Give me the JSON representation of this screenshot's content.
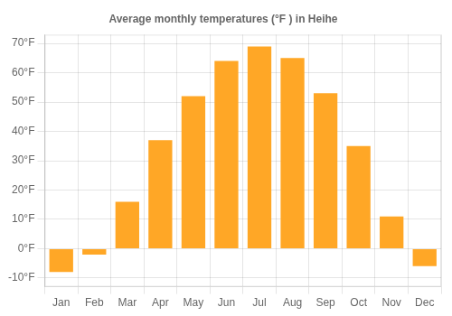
{
  "chart_data": {
    "type": "bar",
    "title": "Average monthly temperatures (°F ) in Heihe",
    "categories": [
      "Jan",
      "Feb",
      "Mar",
      "Apr",
      "May",
      "Jun",
      "Jul",
      "Aug",
      "Sep",
      "Oct",
      "Nov",
      "Dec"
    ],
    "values": [
      -8,
      -2,
      16,
      37,
      52,
      64,
      69,
      65,
      53,
      35,
      11,
      -6
    ],
    "color": "#FFA726",
    "ylim": [
      -13,
      73
    ],
    "yticks": [
      {
        "value": -10,
        "label": "-10°F"
      },
      {
        "value": 0,
        "label": "0°F"
      },
      {
        "value": 10,
        "label": "10°F"
      },
      {
        "value": 20,
        "label": "20°F"
      },
      {
        "value": 30,
        "label": "30°F"
      },
      {
        "value": 40,
        "label": "40°F"
      },
      {
        "value": 50,
        "label": "50°F"
      },
      {
        "value": 60,
        "label": "60°F"
      },
      {
        "value": 70,
        "label": "70°F"
      }
    ],
    "grid": true
  }
}
